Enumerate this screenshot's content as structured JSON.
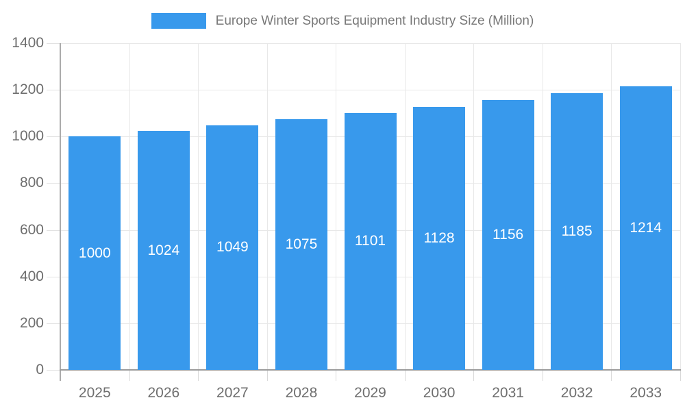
{
  "legend": {
    "label": "Europe Winter Sports Equipment Industry Size (Million)",
    "swatch_color": "#3899ec"
  },
  "chart_data": {
    "type": "bar",
    "title": "Europe Winter Sports Equipment Industry Size (Million)",
    "categories": [
      "2025",
      "2026",
      "2027",
      "2028",
      "2029",
      "2030",
      "2031",
      "2032",
      "2033"
    ],
    "values": [
      1000,
      1024,
      1049,
      1075,
      1101,
      1128,
      1156,
      1185,
      1214
    ],
    "xlabel": "",
    "ylabel": "",
    "ylim": [
      0,
      1400
    ],
    "yticks": [
      0,
      200,
      400,
      600,
      800,
      1000,
      1200,
      1400
    ],
    "grid": true,
    "legend_position": "top",
    "bar_color": "#3899ec",
    "bar_label_color": "#ffffff",
    "axis_text_color": "#6e6e6e",
    "grid_color": "#e8e8e8"
  }
}
